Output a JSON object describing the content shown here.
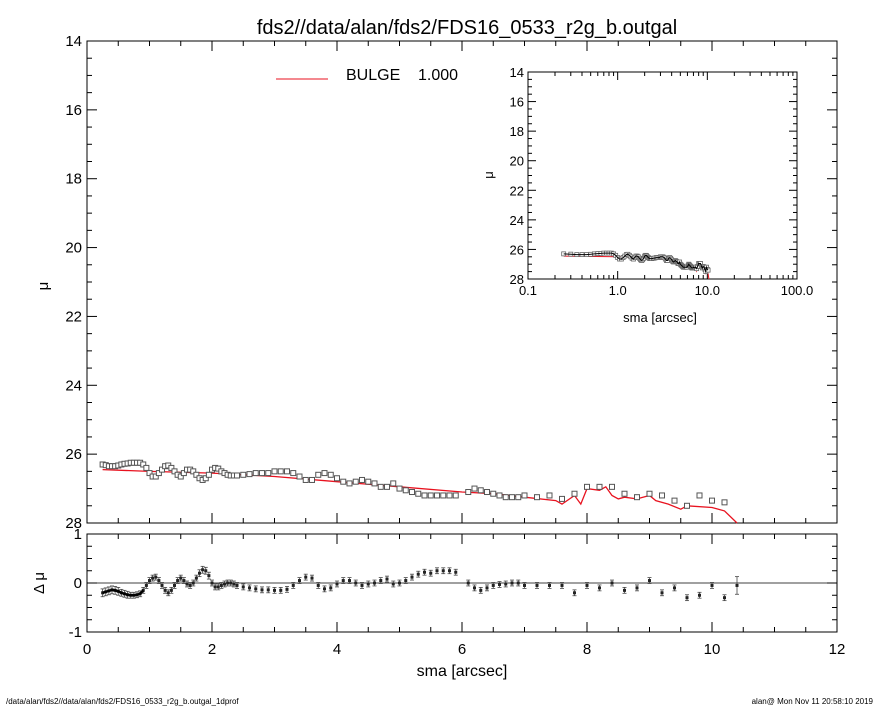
{
  "chart_data": [
    {
      "type": "scatter",
      "panel": "main",
      "title": "fds2//data/alan/fds2/FDS16_0533_r2g_b.outgal",
      "ylabel": "μ",
      "xlim": [
        0,
        12
      ],
      "ylim": [
        28,
        14
      ],
      "y_inverted": true,
      "y_ticks": [
        14,
        16,
        18,
        20,
        22,
        24,
        26,
        28
      ],
      "legend": {
        "label": "BULGE",
        "value": "1.000",
        "color": "#e8121f",
        "placement": "top"
      },
      "series": [
        {
          "name": "BULGE",
          "kind": "model-line",
          "color": "#e8121f",
          "x": [
            0.25,
            1.0,
            2.0,
            3.0,
            4.0,
            5.0,
            6.0,
            6.5,
            7.0,
            7.5,
            7.6,
            7.8,
            7.9,
            8.0,
            8.2,
            8.3,
            8.4,
            8.5,
            8.6,
            8.8,
            9.0,
            9.1,
            9.3,
            9.5,
            9.6,
            10.0,
            10.2,
            10.4
          ],
          "y": [
            26.45,
            26.5,
            26.55,
            26.65,
            26.8,
            26.95,
            27.1,
            27.15,
            27.25,
            27.35,
            27.45,
            27.2,
            27.45,
            27.0,
            27.05,
            26.95,
            27.2,
            27.3,
            27.25,
            27.3,
            27.2,
            27.35,
            27.45,
            27.6,
            27.5,
            27.55,
            27.65,
            28.0
          ]
        },
        {
          "name": "data",
          "kind": "open-squares",
          "color": "#555555",
          "x": [
            0.25,
            0.3,
            0.35,
            0.4,
            0.45,
            0.5,
            0.55,
            0.6,
            0.65,
            0.7,
            0.75,
            0.8,
            0.85,
            0.9,
            0.95,
            1.0,
            1.05,
            1.1,
            1.15,
            1.2,
            1.25,
            1.3,
            1.35,
            1.4,
            1.45,
            1.5,
            1.55,
            1.6,
            1.65,
            1.7,
            1.75,
            1.8,
            1.85,
            1.9,
            1.95,
            2.0,
            2.05,
            2.1,
            2.15,
            2.2,
            2.25,
            2.3,
            2.35,
            2.4,
            2.5,
            2.6,
            2.7,
            2.8,
            2.9,
            3.0,
            3.1,
            3.2,
            3.3,
            3.4,
            3.5,
            3.6,
            3.7,
            3.8,
            3.9,
            4.0,
            4.1,
            4.2,
            4.3,
            4.4,
            4.5,
            4.6,
            4.7,
            4.8,
            4.9,
            5.0,
            5.1,
            5.2,
            5.3,
            5.4,
            5.5,
            5.6,
            5.7,
            5.8,
            5.9,
            6.1,
            6.2,
            6.3,
            6.4,
            6.5,
            6.6,
            6.7,
            6.8,
            6.9,
            7.0,
            7.2,
            7.4,
            7.6,
            7.8,
            8.0,
            8.2,
            8.4,
            8.6,
            8.8,
            9.0,
            9.2,
            9.4,
            9.6,
            9.8,
            10.0,
            10.2
          ],
          "y": [
            26.3,
            26.32,
            26.35,
            26.35,
            26.35,
            26.33,
            26.3,
            26.28,
            26.27,
            26.25,
            26.25,
            26.25,
            26.25,
            26.3,
            26.4,
            26.55,
            26.65,
            26.65,
            26.55,
            26.45,
            26.35,
            26.33,
            26.4,
            26.5,
            26.6,
            26.65,
            26.55,
            26.45,
            26.45,
            26.5,
            26.6,
            26.7,
            26.75,
            26.7,
            26.6,
            26.45,
            26.4,
            26.42,
            26.5,
            26.55,
            26.6,
            26.62,
            26.62,
            26.62,
            26.6,
            26.58,
            26.55,
            26.55,
            26.55,
            26.5,
            26.5,
            26.5,
            26.55,
            26.65,
            26.75,
            26.75,
            26.6,
            26.55,
            26.6,
            26.7,
            26.8,
            26.85,
            26.8,
            26.75,
            26.8,
            26.85,
            26.95,
            26.95,
            26.85,
            27.0,
            27.05,
            27.1,
            27.15,
            27.2,
            27.2,
            27.2,
            27.2,
            27.2,
            27.2,
            27.1,
            27.0,
            27.05,
            27.1,
            27.15,
            27.2,
            27.25,
            27.25,
            27.25,
            27.2,
            27.25,
            27.2,
            27.3,
            27.15,
            26.95,
            26.95,
            26.95,
            27.15,
            27.25,
            27.15,
            27.2,
            27.35,
            27.5,
            27.2,
            27.35,
            27.4
          ]
        }
      ]
    },
    {
      "type": "scatter",
      "panel": "inset",
      "xlabel": "sma [arcsec]",
      "ylabel": "μ",
      "x_scale": "log",
      "xlim": [
        0.1,
        100.0
      ],
      "x_tick_labels": [
        "0.1",
        "1.0",
        "10.0",
        "100.0"
      ],
      "ylim": [
        28,
        14
      ],
      "y_inverted": true,
      "y_ticks": [
        14,
        16,
        18,
        20,
        22,
        24,
        26,
        28
      ]
    },
    {
      "type": "scatter",
      "panel": "residual",
      "xlabel": "sma [arcsec]",
      "ylabel": "Δ μ",
      "xlim": [
        0,
        12
      ],
      "x_ticks": [
        0,
        2,
        4,
        6,
        8,
        10,
        12
      ],
      "ylim": [
        -1,
        1
      ],
      "y_ticks": [
        -1,
        0,
        1
      ],
      "series": [
        {
          "name": "residuals",
          "kind": "points-with-errorbars",
          "color": "#444444",
          "x": [
            0.25,
            0.3,
            0.35,
            0.4,
            0.45,
            0.5,
            0.55,
            0.6,
            0.65,
            0.7,
            0.75,
            0.8,
            0.85,
            0.9,
            0.95,
            1.0,
            1.05,
            1.1,
            1.15,
            1.2,
            1.25,
            1.3,
            1.35,
            1.4,
            1.45,
            1.5,
            1.55,
            1.6,
            1.65,
            1.7,
            1.75,
            1.8,
            1.85,
            1.9,
            1.95,
            2.0,
            2.05,
            2.1,
            2.15,
            2.2,
            2.25,
            2.3,
            2.35,
            2.4,
            2.5,
            2.6,
            2.7,
            2.8,
            2.9,
            3.0,
            3.1,
            3.2,
            3.3,
            3.4,
            3.5,
            3.6,
            3.7,
            3.8,
            3.9,
            4.0,
            4.1,
            4.2,
            4.3,
            4.4,
            4.5,
            4.6,
            4.7,
            4.8,
            4.9,
            5.0,
            5.1,
            5.2,
            5.3,
            5.4,
            5.5,
            5.6,
            5.7,
            5.8,
            5.9,
            6.1,
            6.2,
            6.3,
            6.4,
            6.5,
            6.6,
            6.7,
            6.8,
            6.9,
            7.0,
            7.2,
            7.4,
            7.6,
            7.8,
            8.0,
            8.2,
            8.4,
            8.6,
            8.8,
            9.0,
            9.2,
            9.4,
            9.6,
            9.8,
            10.0,
            10.2,
            10.4
          ],
          "y": [
            -0.2,
            -0.18,
            -0.16,
            -0.14,
            -0.15,
            -0.17,
            -0.2,
            -0.22,
            -0.24,
            -0.25,
            -0.25,
            -0.24,
            -0.22,
            -0.15,
            -0.05,
            0.05,
            0.1,
            0.12,
            0.05,
            -0.05,
            -0.15,
            -0.2,
            -0.15,
            -0.05,
            0.05,
            0.1,
            0.05,
            -0.02,
            -0.05,
            0.0,
            0.1,
            0.2,
            0.27,
            0.25,
            0.15,
            0.0,
            -0.08,
            -0.08,
            -0.05,
            -0.02,
            0.0,
            0.0,
            -0.02,
            -0.05,
            -0.08,
            -0.1,
            -0.12,
            -0.14,
            -0.14,
            -0.15,
            -0.15,
            -0.13,
            -0.05,
            0.05,
            0.12,
            0.1,
            -0.05,
            -0.12,
            -0.1,
            -0.02,
            0.05,
            0.05,
            0.0,
            -0.05,
            -0.02,
            0.0,
            0.05,
            0.08,
            -0.02,
            0.0,
            0.05,
            0.12,
            0.18,
            0.22,
            0.2,
            0.25,
            0.25,
            0.25,
            0.22,
            0.0,
            -0.1,
            -0.15,
            -0.1,
            -0.05,
            -0.03,
            -0.02,
            0.0,
            0.0,
            -0.05,
            -0.05,
            -0.05,
            -0.05,
            -0.2,
            -0.05,
            -0.1,
            0.0,
            -0.15,
            -0.1,
            0.05,
            -0.2,
            -0.1,
            -0.3,
            -0.25,
            -0.05,
            -0.3,
            -0.05
          ],
          "err": [
            0.08,
            0.08,
            0.08,
            0.08,
            0.08,
            0.08,
            0.07,
            0.07,
            0.07,
            0.06,
            0.06,
            0.06,
            0.06,
            0.06,
            0.06,
            0.06,
            0.06,
            0.06,
            0.06,
            0.06,
            0.06,
            0.06,
            0.06,
            0.06,
            0.06,
            0.06,
            0.06,
            0.06,
            0.06,
            0.06,
            0.06,
            0.07,
            0.07,
            0.07,
            0.07,
            0.06,
            0.06,
            0.06,
            0.06,
            0.06,
            0.06,
            0.06,
            0.06,
            0.06,
            0.06,
            0.06,
            0.06,
            0.06,
            0.06,
            0.06,
            0.06,
            0.06,
            0.06,
            0.06,
            0.06,
            0.06,
            0.06,
            0.06,
            0.06,
            0.06,
            0.06,
            0.06,
            0.06,
            0.06,
            0.06,
            0.06,
            0.06,
            0.06,
            0.06,
            0.06,
            0.06,
            0.06,
            0.06,
            0.06,
            0.06,
            0.06,
            0.06,
            0.06,
            0.06,
            0.06,
            0.06,
            0.06,
            0.06,
            0.06,
            0.06,
            0.06,
            0.06,
            0.06,
            0.06,
            0.06,
            0.06,
            0.06,
            0.06,
            0.06,
            0.06,
            0.06,
            0.06,
            0.06,
            0.06,
            0.06,
            0.06,
            0.06,
            0.06,
            0.06,
            0.06,
            0.18
          ]
        }
      ]
    }
  ],
  "footer": {
    "left": "/data/alan/fds2//data/alan/fds2/FDS16_0533_r2g_b.outgal_1dprof",
    "right": "alan@  Mon Nov 11 20:58:10 2019"
  }
}
